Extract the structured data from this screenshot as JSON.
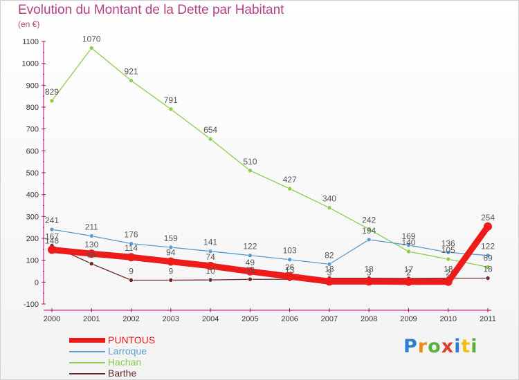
{
  "header": {
    "title": "Evolution du Montant de la Dette par Habitant",
    "subtitle": "(en €)"
  },
  "colors": {
    "title": "#b5417f",
    "axis": "#c0006a",
    "grid": "#e2e2e2",
    "label": "#555555"
  },
  "logo": {
    "letters": [
      {
        "ch": "P",
        "color": "#2e7fd3"
      },
      {
        "ch": "r",
        "color": "#f08a16"
      },
      {
        "ch": "o",
        "color": "#57b13b"
      },
      {
        "ch": "x",
        "color": "#d9422a"
      },
      {
        "ch": "i",
        "color": "#2e7fd3"
      },
      {
        "ch": "t",
        "color": "#f0c014"
      },
      {
        "ch": "i",
        "color": "#57b13b"
      }
    ]
  },
  "chart_data": {
    "type": "line",
    "title": "Evolution du Montant de la Dette par Habitant",
    "subtitle": "(en €)",
    "xlabel": "",
    "ylabel": "",
    "categories": [
      "2000",
      "2001",
      "2002",
      "2003",
      "2004",
      "2005",
      "2006",
      "2007",
      "2008",
      "2009",
      "2010",
      "2011"
    ],
    "ylim": [
      -100,
      1100
    ],
    "yticks": [
      -100,
      0,
      100,
      200,
      300,
      400,
      500,
      600,
      700,
      800,
      900,
      1000,
      1100
    ],
    "grid": false,
    "legend_position": "bottom-left",
    "series": [
      {
        "name": "PUNTOUS",
        "color": "#ee1b1b",
        "values": [
          148,
          130,
          114,
          94,
          74,
          49,
          26,
          3,
          3,
          2,
          2,
          254
        ],
        "labels": [
          "148",
          "130",
          "114",
          "94",
          "74",
          "49",
          "26",
          "3",
          "3",
          "2",
          "2",
          "254"
        ]
      },
      {
        "name": "Larroque",
        "color": "#5a9bd0",
        "values": [
          241,
          211,
          176,
          159,
          141,
          122,
          103,
          82,
          194,
          169,
          136,
          122
        ],
        "labels": [
          "241",
          "211",
          "176",
          "159",
          "141",
          "122",
          "103",
          "82",
          "194",
          "169",
          "136",
          "122"
        ]
      },
      {
        "name": "Hachan",
        "color": "#8ccd4a",
        "values": [
          829,
          1070,
          921,
          791,
          654,
          510,
          427,
          340,
          242,
          140,
          105,
          69
        ],
        "labels": [
          "829",
          "1070",
          "921",
          "791",
          "654",
          "510",
          "427",
          "340",
          "242",
          "140",
          "105",
          "69"
        ]
      },
      {
        "name": "Barthe",
        "color": "#6b2b2b",
        "values": [
          167,
          84,
          9,
          9,
          10,
          13,
          13,
          18,
          18,
          17,
          18,
          18
        ],
        "labels": [
          "167",
          "84",
          "9",
          "9",
          "10",
          "13",
          "13",
          "18",
          "18",
          "17",
          "18",
          "18"
        ]
      }
    ]
  }
}
